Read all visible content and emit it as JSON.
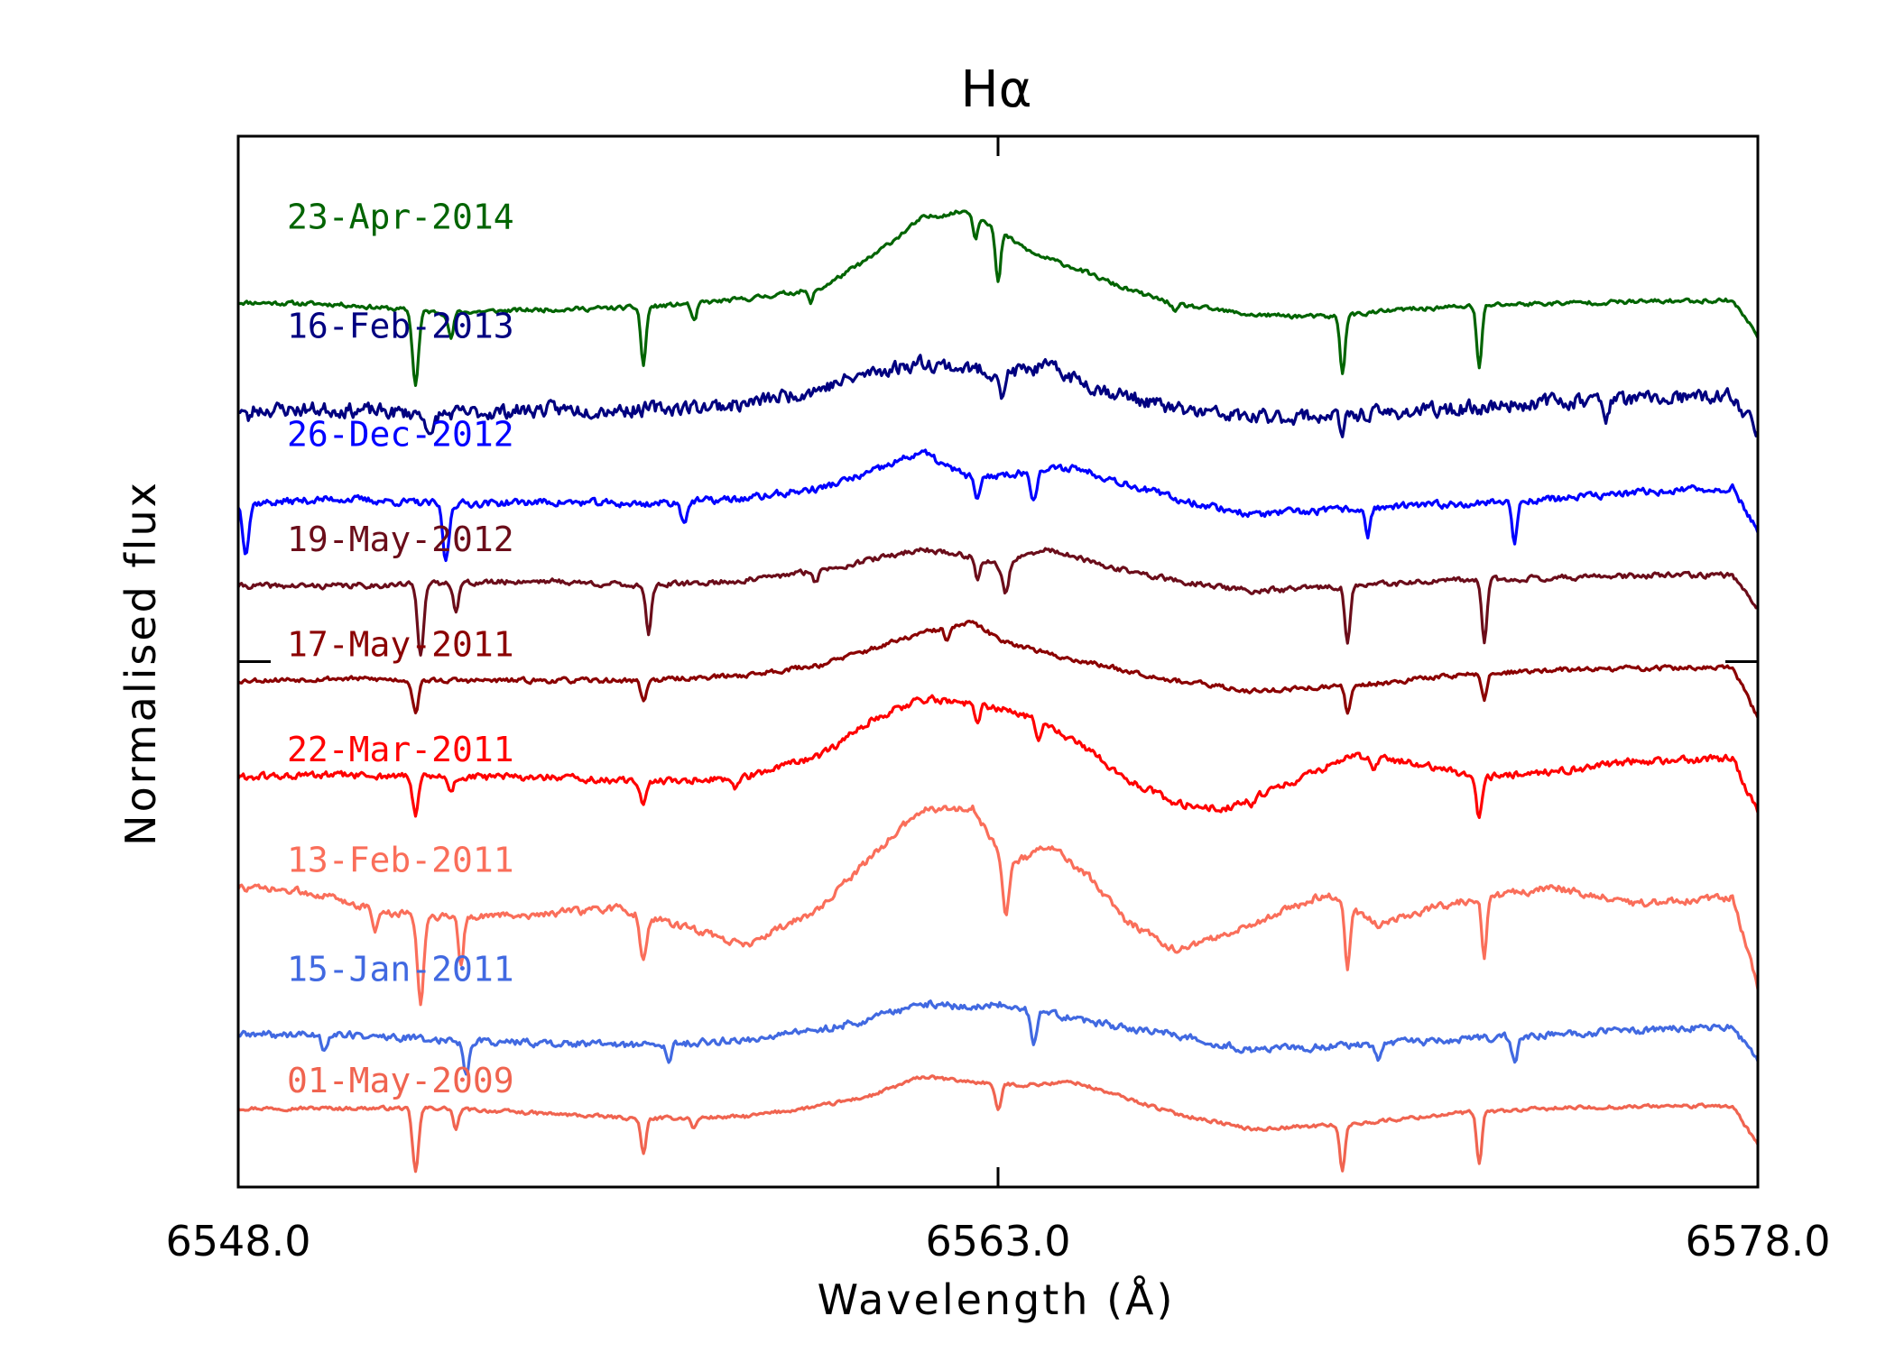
{
  "chart_data": {
    "type": "line",
    "title": "Hα",
    "xlabel": "Wavelength (Å)",
    "ylabel": "Normalised flux",
    "xlim": [
      6548.0,
      6578.0
    ],
    "ylim": [
      0.0,
      10.0
    ],
    "x_ticks": [
      "6548.0",
      "6563.0",
      "6578.0"
    ],
    "x_tick_values": [
      6548.0,
      6563.0,
      6578.0
    ],
    "y_tick_values": [
      5.0
    ],
    "grid": false,
    "series": [
      {
        "name": "23-Apr-2014",
        "color": "#006400",
        "offset": 8.4,
        "label_y": 9.12,
        "baseline": [
          [
            6548,
            0.02
          ],
          [
            6550,
            0.0
          ],
          [
            6552,
            -0.08
          ],
          [
            6554,
            -0.05
          ],
          [
            6556,
            -0.03
          ],
          [
            6558,
            0.05
          ],
          [
            6559.5,
            0.15
          ],
          [
            6560.5,
            0.45
          ],
          [
            6561.5,
            0.82
          ],
          [
            6562.5,
            0.9
          ],
          [
            6563,
            0.7
          ],
          [
            6563.7,
            0.48
          ],
          [
            6564.5,
            0.35
          ],
          [
            6565.5,
            0.15
          ],
          [
            6566.5,
            0.0
          ],
          [
            6568,
            -0.1
          ],
          [
            6569.5,
            -0.12
          ],
          [
            6571,
            -0.05
          ],
          [
            6573,
            0.0
          ],
          [
            6575,
            0.02
          ],
          [
            6577.5,
            0.04
          ],
          [
            6578,
            -0.3
          ]
        ],
        "dips": [
          [
            6551.5,
            0.7,
            0.06
          ],
          [
            6552.2,
            0.25,
            0.05
          ],
          [
            6556.0,
            0.55,
            0.05
          ],
          [
            6557.0,
            0.18,
            0.05
          ],
          [
            6559.3,
            0.12,
            0.05
          ],
          [
            6563.0,
            0.5,
            0.05
          ],
          [
            6562.55,
            0.25,
            0.05
          ],
          [
            6569.8,
            0.55,
            0.05
          ],
          [
            6572.5,
            0.6,
            0.05
          ],
          [
            6566.5,
            0.08,
            0.05
          ]
        ],
        "noise": 0.018,
        "seed": 11
      },
      {
        "name": "16-Feb-2013",
        "color": "#000080",
        "offset": 7.4,
        "label_y": 8.08,
        "baseline": [
          [
            6548,
            0.0
          ],
          [
            6550,
            0.0
          ],
          [
            6552,
            -0.05
          ],
          [
            6554,
            0.0
          ],
          [
            6556,
            0.0
          ],
          [
            6558,
            0.05
          ],
          [
            6559.5,
            0.2
          ],
          [
            6560.5,
            0.35
          ],
          [
            6561.5,
            0.45
          ],
          [
            6562.5,
            0.38
          ],
          [
            6563,
            0.35
          ],
          [
            6564,
            0.4
          ],
          [
            6565,
            0.2
          ],
          [
            6566.5,
            0.0
          ],
          [
            6568,
            -0.08
          ],
          [
            6570,
            -0.05
          ],
          [
            6572,
            0.0
          ],
          [
            6574,
            0.08
          ],
          [
            6576,
            0.1
          ],
          [
            6577.5,
            0.12
          ],
          [
            6578,
            -0.2
          ]
        ],
        "dips": [
          [
            6551.8,
            0.25,
            0.06
          ],
          [
            6563.1,
            0.25,
            0.05
          ],
          [
            6569.8,
            0.2,
            0.05
          ],
          [
            6575.0,
            0.15,
            0.05
          ],
          [
            6548.2,
            0.1,
            0.05
          ]
        ],
        "noise": 0.06,
        "seed": 23
      },
      {
        "name": "26-Dec-2012",
        "color": "#0000ff",
        "offset": 6.5,
        "label_y": 7.05,
        "baseline": [
          [
            6548,
            0.0
          ],
          [
            6550,
            0.05
          ],
          [
            6552,
            0.0
          ],
          [
            6554,
            0.02
          ],
          [
            6556,
            0.0
          ],
          [
            6558,
            0.05
          ],
          [
            6559.5,
            0.15
          ],
          [
            6560.5,
            0.3
          ],
          [
            6561.5,
            0.5
          ],
          [
            6562,
            0.35
          ],
          [
            6562.5,
            0.25
          ],
          [
            6563.5,
            0.3
          ],
          [
            6564.5,
            0.35
          ],
          [
            6565.5,
            0.2
          ],
          [
            6566.5,
            0.05
          ],
          [
            6568,
            -0.1
          ],
          [
            6570,
            -0.05
          ],
          [
            6572,
            0.0
          ],
          [
            6574,
            0.05
          ],
          [
            6576,
            0.12
          ],
          [
            6577.5,
            0.15
          ],
          [
            6578,
            -0.25
          ]
        ],
        "dips": [
          [
            6548.15,
            0.45,
            0.06
          ],
          [
            6552.1,
            0.55,
            0.06
          ],
          [
            6556.8,
            0.18,
            0.06
          ],
          [
            6563.7,
            0.25,
            0.06
          ],
          [
            6570.3,
            0.25,
            0.05
          ],
          [
            6573.2,
            0.4,
            0.05
          ],
          [
            6562.6,
            0.2,
            0.06
          ]
        ],
        "noise": 0.03,
        "seed": 37
      },
      {
        "name": "19-May-2012",
        "color": "#6b0d1a",
        "offset": 5.72,
        "label_y": 6.05,
        "baseline": [
          [
            6548,
            0.0
          ],
          [
            6550,
            0.0
          ],
          [
            6552,
            0.02
          ],
          [
            6554,
            0.05
          ],
          [
            6556,
            0.0
          ],
          [
            6558,
            0.05
          ],
          [
            6559.5,
            0.15
          ],
          [
            6560.5,
            0.25
          ],
          [
            6561.5,
            0.35
          ],
          [
            6562.5,
            0.28
          ],
          [
            6563,
            0.2
          ],
          [
            6564,
            0.35
          ],
          [
            6565,
            0.2
          ],
          [
            6566.5,
            0.05
          ],
          [
            6568,
            -0.05
          ],
          [
            6570,
            0.0
          ],
          [
            6572,
            0.05
          ],
          [
            6574,
            0.08
          ],
          [
            6576,
            0.1
          ],
          [
            6577.5,
            0.1
          ],
          [
            6578,
            -0.2
          ]
        ],
        "dips": [
          [
            6551.6,
            0.65,
            0.06
          ],
          [
            6552.3,
            0.25,
            0.05
          ],
          [
            6556.1,
            0.45,
            0.05
          ],
          [
            6563.15,
            0.3,
            0.06
          ],
          [
            6562.6,
            0.2,
            0.05
          ],
          [
            6569.9,
            0.55,
            0.05
          ],
          [
            6572.6,
            0.6,
            0.05
          ],
          [
            6559.4,
            0.1,
            0.05
          ]
        ],
        "noise": 0.022,
        "seed": 41
      },
      {
        "name": "17-May-2011",
        "color": "#8b0000",
        "offset": 4.82,
        "label_y": 5.05,
        "baseline": [
          [
            6548,
            0.0
          ],
          [
            6550,
            0.02
          ],
          [
            6552,
            0.0
          ],
          [
            6554,
            0.0
          ],
          [
            6556,
            0.0
          ],
          [
            6558,
            0.05
          ],
          [
            6559.5,
            0.15
          ],
          [
            6560.5,
            0.3
          ],
          [
            6561.5,
            0.45
          ],
          [
            6562.5,
            0.55
          ],
          [
            6563,
            0.4
          ],
          [
            6564,
            0.25
          ],
          [
            6565,
            0.15
          ],
          [
            6566.5,
            0.0
          ],
          [
            6568,
            -0.1
          ],
          [
            6570,
            -0.05
          ],
          [
            6572,
            0.05
          ],
          [
            6574,
            0.1
          ],
          [
            6576,
            0.12
          ],
          [
            6577.5,
            0.12
          ],
          [
            6578,
            -0.35
          ]
        ],
        "dips": [
          [
            6551.5,
            0.3,
            0.06
          ],
          [
            6556.0,
            0.2,
            0.05
          ],
          [
            6569.9,
            0.25,
            0.05
          ],
          [
            6572.6,
            0.25,
            0.05
          ],
          [
            6562.0,
            0.12,
            0.05
          ]
        ],
        "noise": 0.02,
        "seed": 53
      },
      {
        "name": "22-Mar-2011",
        "color": "#ff0000",
        "offset": 3.9,
        "label_y": 4.05,
        "baseline": [
          [
            6548,
            0.0
          ],
          [
            6550,
            0.02
          ],
          [
            6552,
            0.0
          ],
          [
            6554,
            0.0
          ],
          [
            6556,
            -0.05
          ],
          [
            6558,
            0.0
          ],
          [
            6559.5,
            0.2
          ],
          [
            6560.5,
            0.55
          ],
          [
            6561.5,
            0.75
          ],
          [
            6562.5,
            0.7
          ],
          [
            6563.5,
            0.6
          ],
          [
            6564.5,
            0.35
          ],
          [
            6565.5,
            0.0
          ],
          [
            6566.5,
            -0.25
          ],
          [
            6567.5,
            -0.3
          ],
          [
            6568.5,
            -0.1
          ],
          [
            6570,
            0.2
          ],
          [
            6571,
            0.15
          ],
          [
            6572.5,
            0.0
          ],
          [
            6574,
            0.05
          ],
          [
            6575.5,
            0.15
          ],
          [
            6577.5,
            0.18
          ],
          [
            6578,
            -0.35
          ]
        ],
        "dips": [
          [
            6551.5,
            0.35,
            0.06
          ],
          [
            6552.2,
            0.15,
            0.05
          ],
          [
            6556.0,
            0.2,
            0.05
          ],
          [
            6557.8,
            0.1,
            0.05
          ],
          [
            6562.6,
            0.2,
            0.05
          ],
          [
            6563.8,
            0.15,
            0.05
          ],
          [
            6568.0,
            0.1,
            0.05
          ],
          [
            6570.4,
            0.1,
            0.05
          ],
          [
            6572.5,
            0.4,
            0.05
          ]
        ],
        "noise": 0.03,
        "seed": 61
      },
      {
        "name": "13-Feb-2011",
        "color": "#fa6e5a",
        "offset": 2.85,
        "label_y": 3.0,
        "baseline": [
          [
            6548,
            0.0
          ],
          [
            6549.5,
            -0.05
          ],
          [
            6551,
            -0.25
          ],
          [
            6552.5,
            -0.28
          ],
          [
            6554,
            -0.25
          ],
          [
            6555.5,
            -0.2
          ],
          [
            6557,
            -0.4
          ],
          [
            6558,
            -0.55
          ],
          [
            6559.5,
            -0.2
          ],
          [
            6560.5,
            0.3
          ],
          [
            6561.5,
            0.75
          ],
          [
            6562.5,
            0.75
          ],
          [
            6563.2,
            0.2
          ],
          [
            6564,
            0.4
          ],
          [
            6564.8,
            0.1
          ],
          [
            6565.5,
            -0.3
          ],
          [
            6566.5,
            -0.6
          ],
          [
            6567.5,
            -0.45
          ],
          [
            6568.5,
            -0.25
          ],
          [
            6569.5,
            -0.05
          ],
          [
            6570.5,
            -0.35
          ],
          [
            6571.5,
            -0.2
          ],
          [
            6572.5,
            -0.1
          ],
          [
            6574,
            0.0
          ],
          [
            6575.5,
            -0.15
          ],
          [
            6577.5,
            -0.1
          ],
          [
            6578,
            -0.95
          ]
        ],
        "dips": [
          [
            6551.6,
            0.85,
            0.06
          ],
          [
            6552.4,
            0.45,
            0.05
          ],
          [
            6556.0,
            0.45,
            0.06
          ],
          [
            6563.15,
            0.5,
            0.06
          ],
          [
            6569.9,
            0.6,
            0.05
          ],
          [
            6572.6,
            0.55,
            0.05
          ],
          [
            6550.7,
            0.2,
            0.05
          ]
        ],
        "noise": 0.03,
        "seed": 73
      },
      {
        "name": "15-Jan-2011",
        "color": "#4169e1",
        "offset": 1.45,
        "label_y": 1.96,
        "baseline": [
          [
            6548,
            0.0
          ],
          [
            6550,
            0.0
          ],
          [
            6552,
            -0.05
          ],
          [
            6554,
            -0.08
          ],
          [
            6556,
            -0.1
          ],
          [
            6558,
            -0.05
          ],
          [
            6559.5,
            0.05
          ],
          [
            6560.5,
            0.15
          ],
          [
            6561.5,
            0.3
          ],
          [
            6562.5,
            0.25
          ],
          [
            6563,
            0.3
          ],
          [
            6564,
            0.2
          ],
          [
            6565,
            0.1
          ],
          [
            6566.5,
            0.0
          ],
          [
            6568,
            -0.15
          ],
          [
            6570,
            -0.1
          ],
          [
            6572,
            -0.05
          ],
          [
            6574,
            0.0
          ],
          [
            6576,
            0.05
          ],
          [
            6577.5,
            0.08
          ],
          [
            6578,
            -0.25
          ]
        ],
        "dips": [
          [
            6549.7,
            0.15,
            0.05
          ],
          [
            6552.5,
            0.3,
            0.06
          ],
          [
            6556.5,
            0.2,
            0.05
          ],
          [
            6563.7,
            0.3,
            0.06
          ],
          [
            6570.5,
            0.15,
            0.05
          ],
          [
            6573.2,
            0.25,
            0.05
          ]
        ],
        "noise": 0.03,
        "seed": 89
      },
      {
        "name": "01-May-2009",
        "color": "#f06450",
        "offset": 0.75,
        "label_y": 0.9,
        "baseline": [
          [
            6548,
            0.0
          ],
          [
            6550,
            0.0
          ],
          [
            6552,
            0.0
          ],
          [
            6554,
            -0.05
          ],
          [
            6556,
            -0.1
          ],
          [
            6558,
            -0.08
          ],
          [
            6559.5,
            0.02
          ],
          [
            6560.5,
            0.12
          ],
          [
            6561.5,
            0.3
          ],
          [
            6562.5,
            0.25
          ],
          [
            6563.5,
            0.22
          ],
          [
            6564.5,
            0.25
          ],
          [
            6565.5,
            0.1
          ],
          [
            6566.5,
            -0.05
          ],
          [
            6568,
            -0.2
          ],
          [
            6570,
            -0.15
          ],
          [
            6572,
            -0.05
          ],
          [
            6574,
            0.0
          ],
          [
            6576,
            0.02
          ],
          [
            6577.5,
            0.02
          ],
          [
            6578,
            -0.35
          ]
        ],
        "dips": [
          [
            6551.5,
            0.6,
            0.06
          ],
          [
            6552.3,
            0.2,
            0.05
          ],
          [
            6556.0,
            0.35,
            0.05
          ],
          [
            6563.0,
            0.25,
            0.06
          ],
          [
            6569.8,
            0.45,
            0.05
          ],
          [
            6572.5,
            0.5,
            0.05
          ],
          [
            6557.0,
            0.1,
            0.05
          ]
        ],
        "noise": 0.015,
        "seed": 97
      }
    ]
  }
}
